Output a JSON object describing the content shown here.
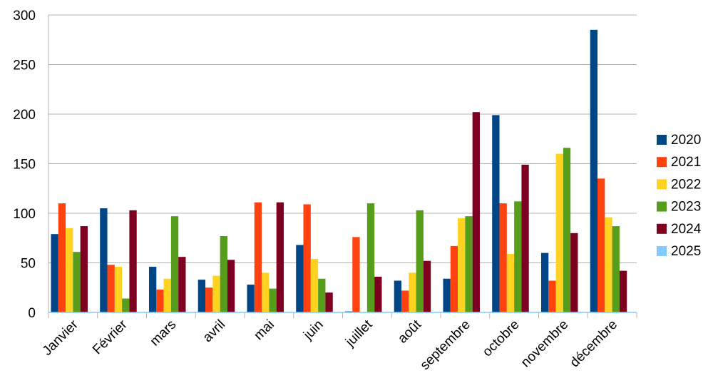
{
  "chart_data": {
    "type": "bar",
    "title": "",
    "xlabel": "",
    "ylabel": "",
    "ylim": [
      0,
      300
    ],
    "yticks": [
      0,
      50,
      100,
      150,
      200,
      250,
      300
    ],
    "grid": true,
    "legend_position": "right",
    "categories": [
      "Janvier",
      "Février",
      "mars",
      "avril",
      "mai",
      "juin",
      "juillet",
      "août",
      "septembre",
      "octobre",
      "novembre",
      "décembre"
    ],
    "series": [
      {
        "name": "2020",
        "color": "#004586",
        "values": [
          79,
          105,
          46,
          33,
          28,
          68,
          1,
          32,
          34,
          199,
          60,
          285
        ]
      },
      {
        "name": "2021",
        "color": "#ff420e",
        "values": [
          110,
          48,
          23,
          25,
          111,
          109,
          76,
          22,
          67,
          110,
          32,
          135
        ]
      },
      {
        "name": "2022",
        "color": "#ffd320",
        "values": [
          85,
          46,
          34,
          37,
          40,
          54,
          0,
          40,
          95,
          59,
          160,
          96
        ]
      },
      {
        "name": "2023",
        "color": "#579d1c",
        "values": [
          61,
          14,
          97,
          77,
          24,
          34,
          110,
          103,
          97,
          112,
          166,
          87
        ]
      },
      {
        "name": "2024",
        "color": "#7e0021",
        "values": [
          87,
          103,
          56,
          53,
          111,
          20,
          36,
          52,
          202,
          149,
          80,
          42
        ]
      },
      {
        "name": "2025",
        "color": "#83caff",
        "values": [
          0,
          0,
          0,
          0,
          0,
          0,
          0,
          0,
          0,
          0,
          0,
          0
        ]
      }
    ]
  }
}
